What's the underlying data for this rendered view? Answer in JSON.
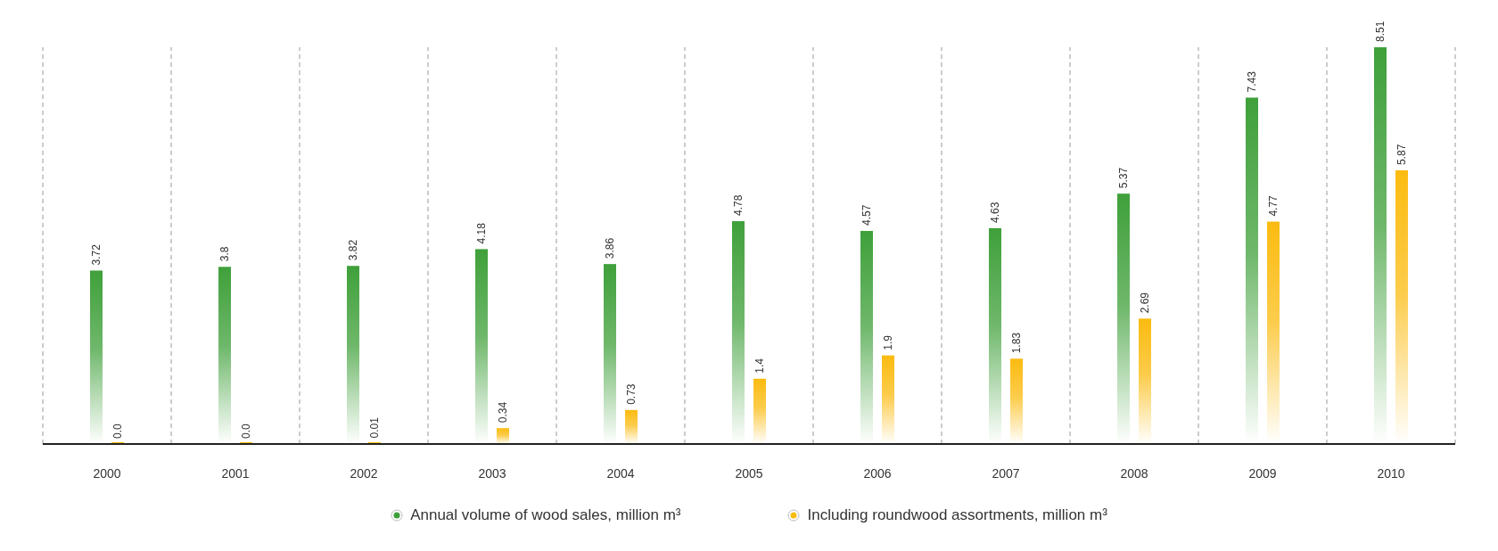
{
  "chart_data": {
    "type": "bar",
    "categories": [
      "2000",
      "2001",
      "2002",
      "2003",
      "2004",
      "2005",
      "2006",
      "2007",
      "2008",
      "2009",
      "2010"
    ],
    "series": [
      {
        "name": "Annual volume of wood sales, million m³",
        "color": "#3fa03a",
        "values": [
          3.72,
          3.8,
          3.82,
          4.18,
          3.86,
          4.78,
          4.57,
          4.63,
          5.37,
          7.43,
          8.51
        ],
        "value_labels": [
          "3.72",
          "3.8",
          "3.82",
          "4.18",
          "3.86",
          "4.78",
          "4.57",
          "4.63",
          "5.37",
          "7.43",
          "8.51"
        ]
      },
      {
        "name": "Including roundwood assortments, million m³",
        "color": "#fbbb10",
        "values": [
          0.0,
          0.0,
          0.01,
          0.34,
          0.73,
          1.4,
          1.9,
          1.83,
          2.69,
          4.77,
          5.87
        ],
        "value_labels": [
          "0.0",
          "0.0",
          "0.01",
          "0.34",
          "0.73",
          "1.4",
          "1.9",
          "1.83",
          "2.69",
          "4.77",
          "5.87"
        ]
      }
    ],
    "grid": "x",
    "legend": "bottom"
  }
}
